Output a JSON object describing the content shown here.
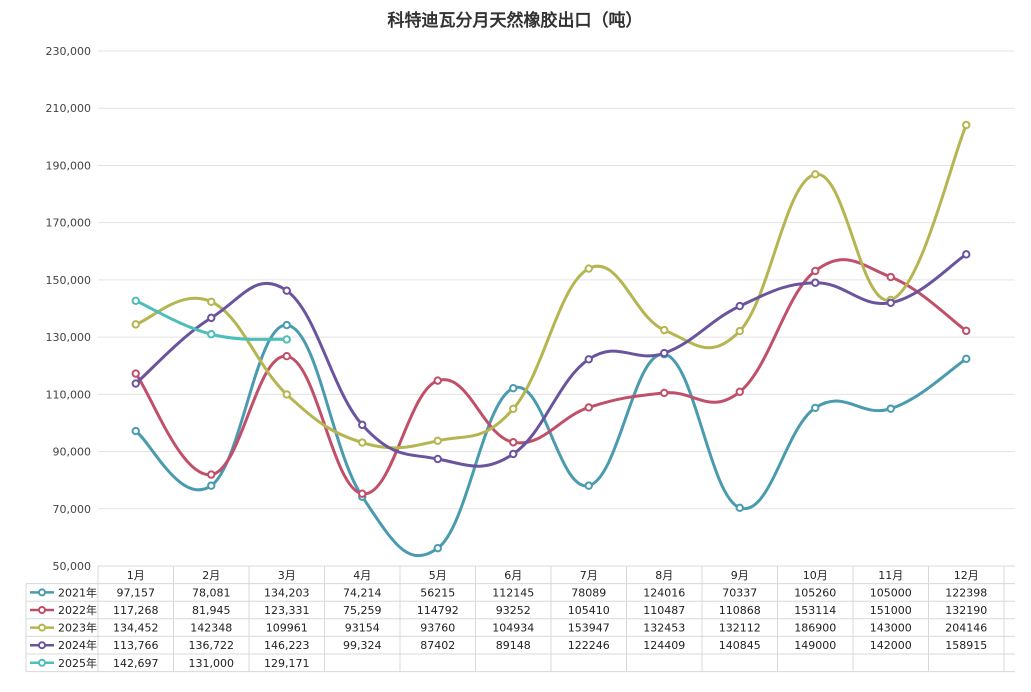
{
  "chart_data": {
    "type": "line",
    "title": "科特迪瓦分月天然橡胶出口（吨）",
    "categories": [
      "1月",
      "2月",
      "3月",
      "4月",
      "5月",
      "6月",
      "7月",
      "8月",
      "9月",
      "10月",
      "11月",
      "12月"
    ],
    "ylim": [
      50000,
      230000
    ],
    "yticks": [
      50000,
      70000,
      90000,
      110000,
      130000,
      150000,
      170000,
      190000,
      210000,
      230000
    ],
    "ytick_labels": [
      "50,000",
      "70,000",
      "90,000",
      "110,000",
      "130,000",
      "150,000",
      "170,000",
      "190,000",
      "210,000",
      "230,000"
    ],
    "grid": true,
    "legend": "data-table-left",
    "series": [
      {
        "name": "2021年",
        "color": "#4a9bb0",
        "values": [
          97157,
          78081,
          134203,
          74214,
          56215,
          112145,
          78089,
          124016,
          70337,
          105260,
          105000,
          122398
        ],
        "labels": [
          "97,157",
          "78,081",
          "134,203",
          "74,214",
          "56215",
          "112145",
          "78089",
          "124016",
          "70337",
          "105260",
          "105000",
          "122398"
        ]
      },
      {
        "name": "2022年",
        "color": "#c0506a",
        "values": [
          117268,
          81945,
          123331,
          75259,
          114792,
          93252,
          105410,
          110487,
          110868,
          153114,
          151000,
          132190
        ],
        "labels": [
          "117,268",
          "81,945",
          "123,331",
          "75,259",
          "114792",
          "93252",
          "105410",
          "110487",
          "110868",
          "153114",
          "151000",
          "132190"
        ]
      },
      {
        "name": "2023年",
        "color": "#b5b551",
        "values": [
          134452,
          142348,
          109961,
          93154,
          93760,
          104934,
          153947,
          132453,
          132112,
          186900,
          143000,
          204146
        ],
        "labels": [
          "134,452",
          "142348",
          "109961",
          "93154",
          "93760",
          "104934",
          "153947",
          "132453",
          "132112",
          "186900",
          "143000",
          "204146"
        ]
      },
      {
        "name": "2024年",
        "color": "#6a549e",
        "values": [
          113766,
          136722,
          146223,
          99324,
          87402,
          89148,
          122246,
          124409,
          140845,
          149000,
          142000,
          158915
        ],
        "labels": [
          "113,766",
          "136,722",
          "146,223",
          "99,324",
          "87402",
          "89148",
          "122246",
          "124409",
          "140845",
          "149000",
          "142000",
          "158915"
        ]
      },
      {
        "name": "2025年",
        "color": "#4dbfb8",
        "values": [
          142697,
          131000,
          129171,
          null,
          null,
          null,
          null,
          null,
          null,
          null,
          null,
          null
        ],
        "labels": [
          "142,697",
          "131,000",
          "129,171",
          "",
          "",
          "",
          "",
          "",
          "",
          "",
          "",
          ""
        ]
      }
    ]
  }
}
